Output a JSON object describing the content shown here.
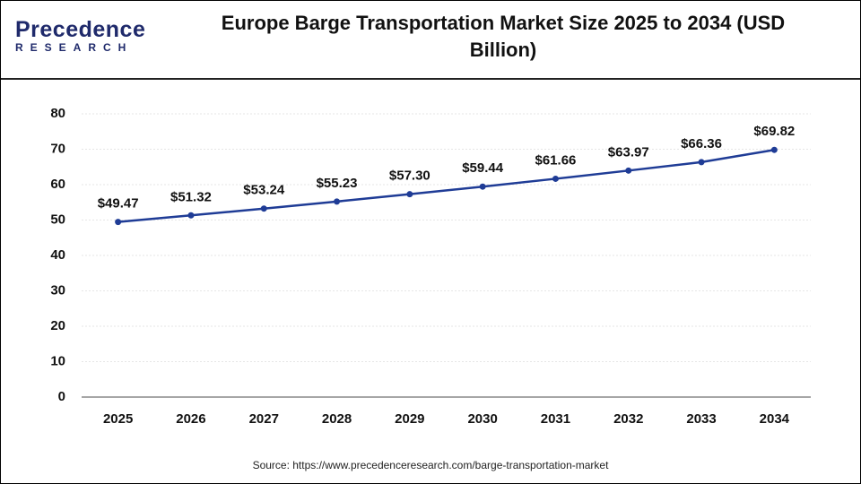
{
  "logo": {
    "name": "Precedence",
    "tagline": "RESEARCH"
  },
  "chart_data": {
    "type": "line",
    "title": "Europe Barge Transportation Market Size 2025 to 2034 (USD Billion)",
    "categories": [
      "2025",
      "2026",
      "2027",
      "2028",
      "2029",
      "2030",
      "2031",
      "2032",
      "2033",
      "2034"
    ],
    "series": [
      {
        "name": "Market Size",
        "color": "#1f3c96",
        "values": [
          49.47,
          51.32,
          53.24,
          55.23,
          57.3,
          59.44,
          61.66,
          63.97,
          66.36,
          69.82
        ],
        "value_labels": [
          "$49.47",
          "$51.32",
          "$53.24",
          "$55.23",
          "$57.30",
          "$59.44",
          "$61.66",
          "$63.97",
          "$66.36",
          "$69.82"
        ]
      }
    ],
    "ylim": [
      0,
      80
    ],
    "yticks": [
      0,
      10,
      20,
      30,
      40,
      50,
      60,
      70,
      80
    ],
    "grid": true,
    "source": "Source: https://www.precedenceresearch.com/barge-transportation-market"
  }
}
